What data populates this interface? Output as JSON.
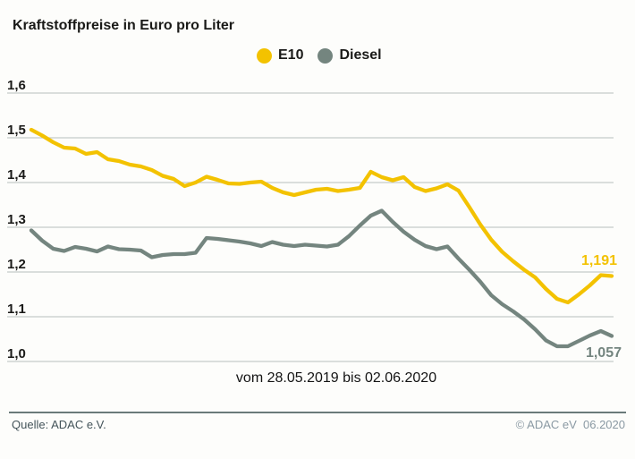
{
  "header": {
    "title": "Kraftstoffpreise in Euro pro Liter"
  },
  "legend": {
    "items": [
      {
        "label": "E10",
        "color": "#F3C200"
      },
      {
        "label": "Diesel",
        "color": "#74857F"
      }
    ]
  },
  "chart_data": {
    "type": "line",
    "title": "Kraftstoffpreise in Euro pro Liter",
    "x_caption": "vom 28.05.2019 bis 02.06.2020",
    "x_range": [
      "28.05.2019",
      "02.06.2020"
    ],
    "ylabel": "Euro pro Liter",
    "ylim": [
      1.0,
      1.6
    ],
    "grid": true,
    "grid_color": "#c6cbca",
    "legend_position": "top",
    "y_ticks": [
      "1,6",
      "1,5",
      "1,4",
      "1,3",
      "1,2",
      "1,1",
      "1,0"
    ],
    "y_tick_values": [
      1.6,
      1.5,
      1.4,
      1.3,
      1.2,
      1.1,
      1.0
    ],
    "series": [
      {
        "name": "E10",
        "color": "#F3C200",
        "end_label": "1,191",
        "end_value": 1.191,
        "values": [
          1.518,
          1.505,
          1.49,
          1.478,
          1.476,
          1.464,
          1.468,
          1.452,
          1.448,
          1.44,
          1.436,
          1.428,
          1.415,
          1.408,
          1.392,
          1.4,
          1.413,
          1.406,
          1.398,
          1.397,
          1.4,
          1.402,
          1.388,
          1.378,
          1.372,
          1.378,
          1.384,
          1.386,
          1.381,
          1.384,
          1.388,
          1.424,
          1.412,
          1.405,
          1.412,
          1.39,
          1.381,
          1.387,
          1.396,
          1.382,
          1.345,
          1.306,
          1.272,
          1.245,
          1.224,
          1.205,
          1.188,
          1.162,
          1.14,
          1.132,
          1.15,
          1.17,
          1.193,
          1.191
        ]
      },
      {
        "name": "Diesel",
        "color": "#74857F",
        "end_label": "1,057",
        "end_value": 1.057,
        "values": [
          1.293,
          1.27,
          1.252,
          1.247,
          1.256,
          1.252,
          1.246,
          1.257,
          1.251,
          1.25,
          1.248,
          1.233,
          1.238,
          1.24,
          1.24,
          1.243,
          1.276,
          1.274,
          1.271,
          1.268,
          1.264,
          1.258,
          1.267,
          1.261,
          1.258,
          1.261,
          1.259,
          1.257,
          1.261,
          1.28,
          1.304,
          1.326,
          1.337,
          1.312,
          1.29,
          1.272,
          1.258,
          1.251,
          1.257,
          1.23,
          1.205,
          1.178,
          1.148,
          1.128,
          1.112,
          1.094,
          1.072,
          1.047,
          1.034,
          1.034,
          1.046,
          1.058,
          1.068,
          1.057
        ]
      }
    ]
  },
  "footer": {
    "source": "Quelle: ADAC e.V.",
    "copyright": "© ADAC eV  06.2020",
    "divider_color": "#6a7a7a"
  }
}
